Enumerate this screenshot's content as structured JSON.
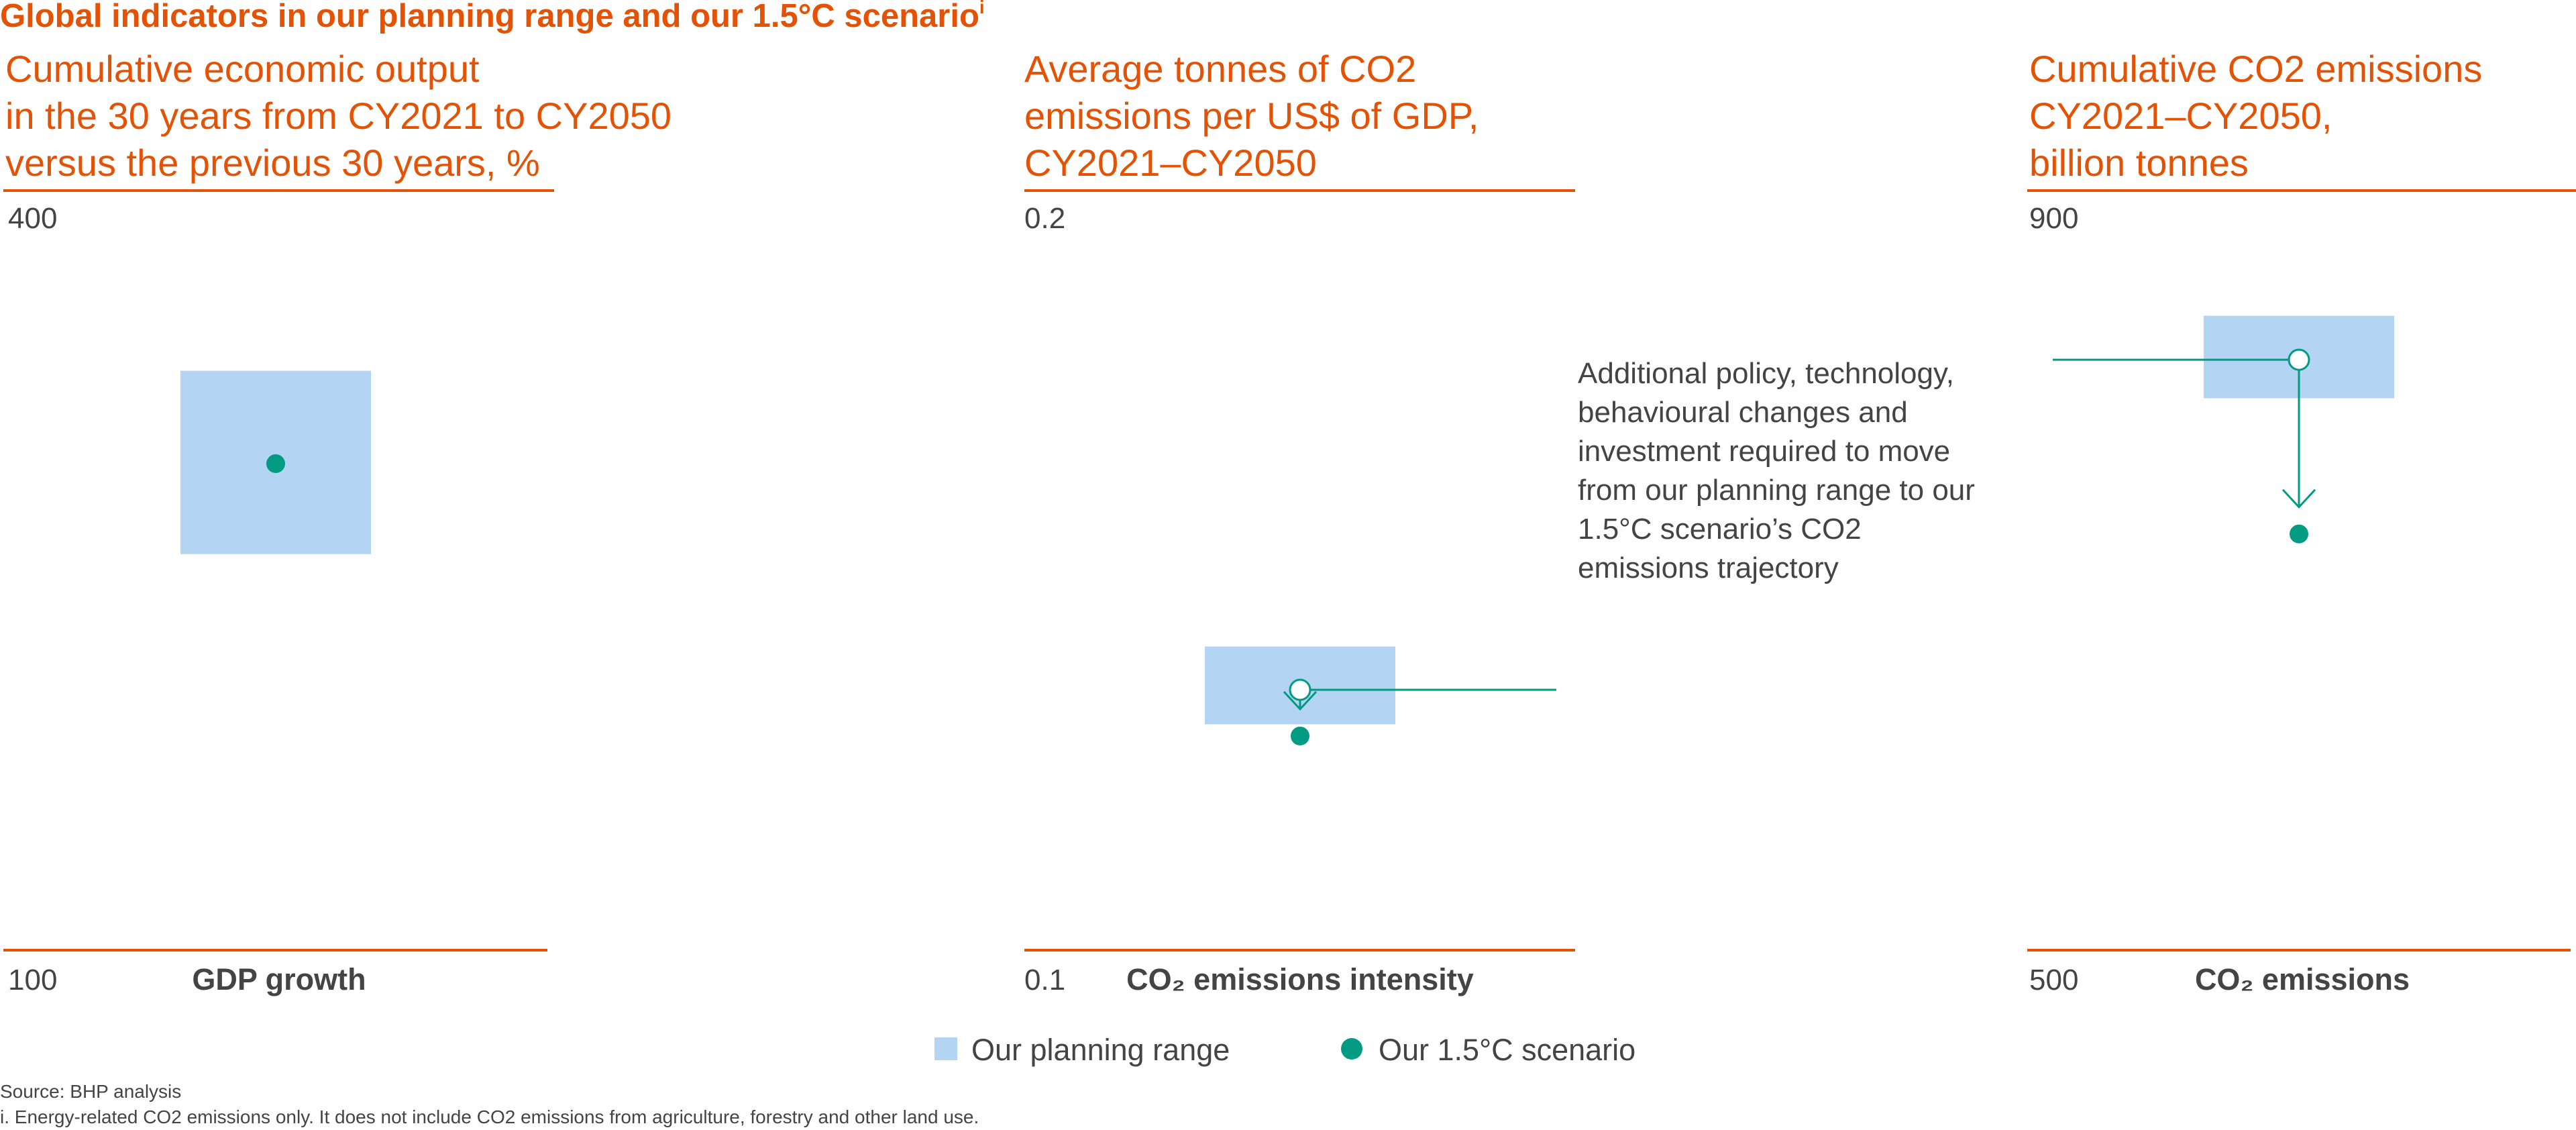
{
  "title": "Global indicators in our planning range and our 1.5°C scenario",
  "title_superscript": "i",
  "colors": {
    "accent": "#e35205",
    "range": "#b3d4f2",
    "scenario": "#009b82",
    "text": "#444444"
  },
  "chart_data": [
    {
      "type": "range",
      "title_lines": [
        "Cumulative economic output",
        "in the 30 years from CY2021 to CY2050",
        "versus the previous 30 years, %"
      ],
      "xlabel": "GDP growth",
      "ylim": [
        100,
        400
      ],
      "range": [
        262,
        337
      ],
      "scenario": 299,
      "planning_marker": null
    },
    {
      "type": "range",
      "title_lines": [
        "Average tonnes of CO2",
        "emissions per US$ of GDP,",
        "CY2021–CY2050"
      ],
      "xlabel": "CO₂ emissions intensity",
      "ylim": [
        0.1,
        0.2
      ],
      "range": [
        0.1308,
        0.1414
      ],
      "scenario": 0.1292,
      "planning_marker": 0.1355
    },
    {
      "type": "range",
      "title_lines": [
        "Cumulative CO2 emissions",
        "CY2021–CY2050,",
        "billion tonnes"
      ],
      "xlabel": "CO₂ emissions",
      "ylim": [
        500,
        900
      ],
      "range": [
        801,
        846
      ],
      "scenario": 727,
      "planning_marker": 822
    }
  ],
  "annotation_lines": [
    "Additional policy, technology,",
    "behavioural changes and",
    "investment required to move",
    "from our planning range to our",
    "1.5°C scenario’s CO2",
    "emissions trajectory"
  ],
  "legend": {
    "range_label": "Our planning range",
    "scenario_label": "Our 1.5°C scenario"
  },
  "source": "Source: BHP analysis",
  "footnote": "i.  Energy-related CO2 emissions only. It does not include CO2 emissions from agriculture, forestry and other land use."
}
